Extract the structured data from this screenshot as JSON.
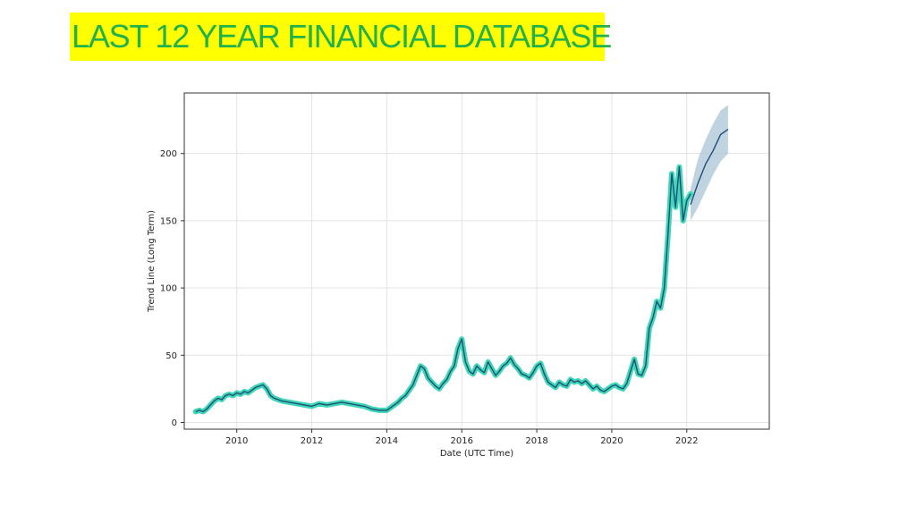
{
  "slide": {
    "title": "LAST 12 YEAR FINANCIAL DATABASE",
    "title_bg_color": "#ffff00",
    "title_text_color": "#22b14c"
  },
  "chart_data": {
    "type": "line",
    "title": "",
    "xlabel": "Date (UTC Time)",
    "ylabel": "Trend Line (Long Term)",
    "x_unit": "year",
    "xlim": [
      2008.6,
      2024.2
    ],
    "ylim": [
      -5,
      245
    ],
    "x_ticks": [
      2010,
      2012,
      2014,
      2016,
      2018,
      2020,
      2022
    ],
    "y_ticks": [
      0,
      50,
      100,
      150,
      200
    ],
    "x_tick_labels": [
      "2010",
      "2012",
      "2014",
      "2016",
      "2018",
      "2020",
      "2022"
    ],
    "y_tick_labels": [
      "0",
      "50",
      "100",
      "150",
      "200"
    ],
    "grid": true,
    "legend": "none",
    "colors": {
      "history_glow": "#3ed6b4",
      "line": "#1f4e79",
      "forecast_band": "#aac6d6",
      "grid": "#e3e3e3",
      "frame": "#333333"
    },
    "series": [
      {
        "role": "history",
        "x": [
          2008.9,
          2009.0,
          2009.1,
          2009.2,
          2009.3,
          2009.4,
          2009.5,
          2009.6,
          2009.7,
          2009.8,
          2009.9,
          2010.0,
          2010.1,
          2010.2,
          2010.3,
          2010.4,
          2010.5,
          2010.6,
          2010.7,
          2010.8,
          2010.9,
          2011.0,
          2011.2,
          2011.4,
          2011.6,
          2011.8,
          2012.0,
          2012.2,
          2012.4,
          2012.6,
          2012.8,
          2013.0,
          2013.2,
          2013.4,
          2013.6,
          2013.8,
          2014.0,
          2014.1,
          2014.2,
          2014.3,
          2014.4,
          2014.5,
          2014.6,
          2014.7,
          2014.8,
          2014.9,
          2015.0,
          2015.1,
          2015.2,
          2015.3,
          2015.4,
          2015.5,
          2015.6,
          2015.7,
          2015.8,
          2015.9,
          2016.0,
          2016.1,
          2016.2,
          2016.3,
          2016.4,
          2016.5,
          2016.6,
          2016.7,
          2016.8,
          2016.9,
          2017.0,
          2017.1,
          2017.2,
          2017.3,
          2017.4,
          2017.5,
          2017.6,
          2017.7,
          2017.8,
          2017.9,
          2018.0,
          2018.1,
          2018.2,
          2018.3,
          2018.4,
          2018.5,
          2018.6,
          2018.7,
          2018.8,
          2018.9,
          2019.0,
          2019.1,
          2019.2,
          2019.3,
          2019.4,
          2019.5,
          2019.6,
          2019.7,
          2019.8,
          2019.9,
          2020.0,
          2020.1,
          2020.2,
          2020.3,
          2020.4,
          2020.5,
          2020.6,
          2020.7,
          2020.8,
          2020.9,
          2021.0,
          2021.1,
          2021.2,
          2021.3,
          2021.4,
          2021.5,
          2021.6,
          2021.7,
          2021.8,
          2021.9,
          2022.0,
          2022.1
        ],
        "y": [
          8,
          9,
          8,
          10,
          13,
          16,
          18,
          17,
          20,
          21,
          20,
          22,
          21,
          23,
          22,
          24,
          26,
          27,
          28,
          25,
          20,
          18,
          16,
          15,
          14,
          13,
          12,
          14,
          13,
          14,
          15,
          14,
          13,
          12,
          10,
          9,
          9,
          11,
          13,
          15,
          18,
          20,
          24,
          28,
          35,
          42,
          40,
          33,
          30,
          27,
          25,
          29,
          32,
          38,
          42,
          55,
          62,
          45,
          38,
          36,
          42,
          39,
          37,
          45,
          40,
          35,
          38,
          42,
          44,
          48,
          43,
          40,
          36,
          35,
          33,
          37,
          42,
          44,
          36,
          30,
          28,
          26,
          30,
          28,
          27,
          32,
          30,
          31,
          29,
          31,
          28,
          25,
          27,
          24,
          23,
          25,
          27,
          28,
          26,
          25,
          29,
          38,
          47,
          36,
          35,
          42,
          70,
          78,
          90,
          85,
          100,
          140,
          185,
          160,
          190,
          150,
          165,
          170
        ]
      },
      {
        "role": "forecast",
        "x": [
          2022.1,
          2022.3,
          2022.5,
          2022.7,
          2022.9,
          2023.1
        ],
        "y": [
          162,
          178,
          192,
          202,
          214,
          218
        ],
        "lower": [
          150,
          160,
          172,
          184,
          194,
          200
        ],
        "upper": [
          174,
          196,
          210,
          222,
          232,
          236
        ]
      }
    ]
  }
}
